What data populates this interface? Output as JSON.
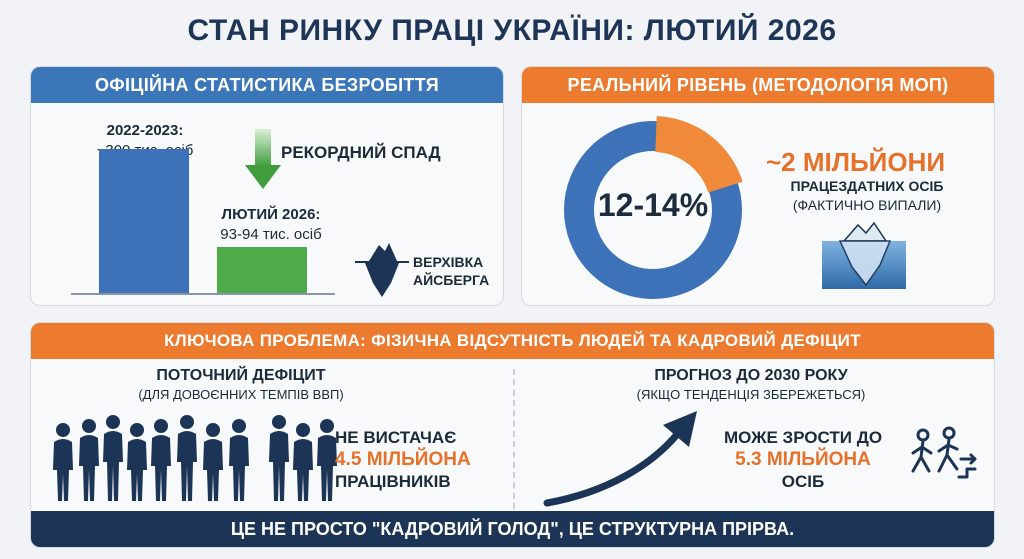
{
  "title": "СТАН РИНКУ ПРАЦІ УКРАЇНИ: ЛЮТИЙ 2026",
  "left_panel": {
    "header": "ОФІЦІЙНА СТАТИСТИКА БЕЗРОБІТТЯ",
    "bar1_period": "2022-2023:",
    "bar1_value": "~300 тис. осіб",
    "drop_label": "РЕКОРДНИЙ СПАД",
    "bar2_period": "ЛЮТИЙ 2026:",
    "bar2_value": "93-94 тис. осіб",
    "iceberg_line1": "ВЕРХІВКА",
    "iceberg_line2": "АЙСБЕРГА",
    "chart_values": [
      300,
      93.5
    ]
  },
  "right_panel": {
    "header": "РЕАЛЬНИЙ РІВЕНЬ (МЕТОДОЛОГІЯ МОП)",
    "donut_label": "12-14%",
    "donut_highlight_fraction": 0.13,
    "highlight_value": "~2 МІЛЬЙОНИ",
    "highlight_line1": "ПРАЦЕЗДАТНИХ ОСІБ",
    "highlight_line2": "(ФАКТИЧНО ВИПАЛИ)"
  },
  "bottom_panel": {
    "header": "КЛЮЧОВА ПРОБЛЕМА: ФІЗИЧНА ВІДСУТНІСТЬ ЛЮДЕЙ ТА КАДРОВИЙ ДЕФІЦИТ",
    "current_title": "ПОТОЧНИЙ ДЕФІЦИТ",
    "current_sub": "(ДЛЯ ДОВОЄННИХ ТЕМПІВ ВВП)",
    "current_line1": "НЕ ВИСТАЧАЄ",
    "current_value": "4.5 МІЛЬЙОНА",
    "current_line3": "ПРАЦІВНИКІВ",
    "forecast_title": "ПРОГНОЗ ДО 2030 РОКУ",
    "forecast_sub": "(ЯКЩО ТЕНДЕНЦІЯ ЗБЕРЕЖЕТЬСЯ)",
    "forecast_line1": "МОЖЕ ЗРОСТИ ДО",
    "forecast_value": "5.3 МІЛЬЙОНА",
    "forecast_line3": "ОСІБ",
    "footer": "ЦЕ НЕ ПРОСТО \"КАДРОВИЙ ГОЛОД\", ЦЕ СТРУКТУРНА ПРІРВА."
  },
  "colors": {
    "blue": "#3a76b8",
    "orange": "#ec7a2f",
    "green": "#4faa4a",
    "navy": "#1c3556"
  },
  "icons": [
    "down-arrow-icon",
    "iceberg-icon",
    "donut-chart",
    "people-silhouettes-icon",
    "growth-arrow-icon",
    "walking-person-icon"
  ]
}
